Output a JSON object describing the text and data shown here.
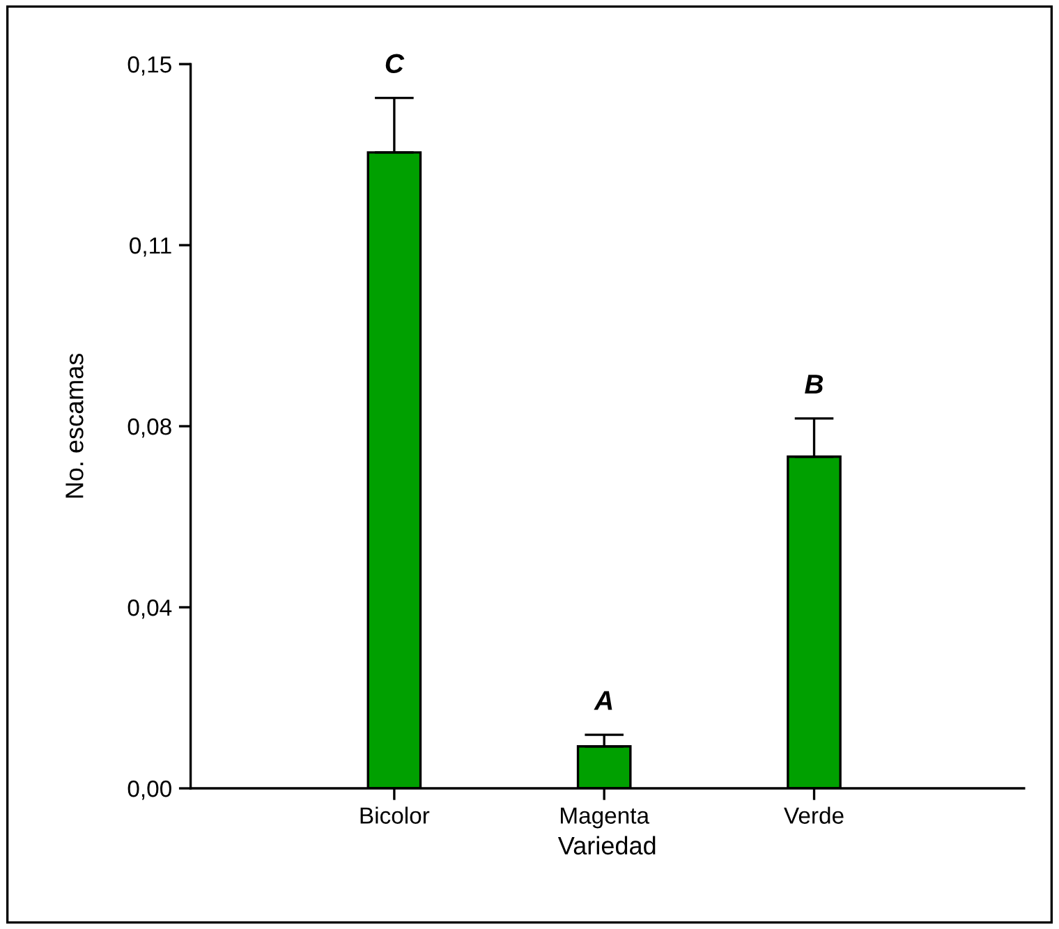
{
  "chart_data": {
    "type": "bar",
    "xlabel": "Variedad",
    "ylabel": "No. escamas",
    "categories": [
      "Bicolor",
      "Magenta",
      "Verde"
    ],
    "values": [
      0.1317,
      0.0087,
      0.0687
    ],
    "errors": [
      0.0113,
      0.0024,
      0.0079
    ],
    "color": "#00a000",
    "ylim": [
      0,
      0.15
    ],
    "yticks": [
      {
        "value": 0,
        "label": "0,00"
      },
      {
        "value": 0.0375,
        "label": "0,04"
      },
      {
        "value": 0.075,
        "label": "0,08"
      },
      {
        "value": 0.1125,
        "label": "0,11"
      },
      {
        "value": 0.15,
        "label": "0,15"
      }
    ],
    "annotations": [
      {
        "text": "C",
        "x": "Bicolor",
        "y": 0.143
      },
      {
        "text": "A",
        "x": "Magenta",
        "y": 0.0111
      },
      {
        "text": "B",
        "x": "Verde",
        "y": 0.0766
      }
    ],
    "grid": false
  }
}
